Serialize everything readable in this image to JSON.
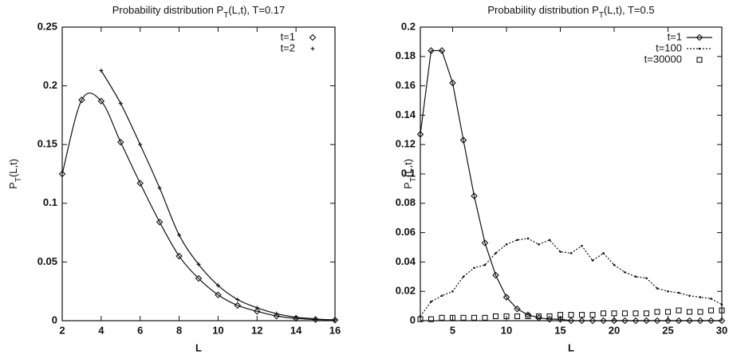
{
  "chart_data": [
    {
      "type": "line",
      "title": [
        "Probability distribution P",
        "T",
        "(L,t), T=0.17"
      ],
      "x_label": "L",
      "y_label": [
        "P",
        "T",
        "(L,t)"
      ],
      "xlim": [
        2,
        16
      ],
      "xticks": [
        2,
        4,
        6,
        8,
        10,
        12,
        14,
        16
      ],
      "ylim": [
        0,
        0.25
      ],
      "yticks": [
        0,
        0.05,
        0.1,
        0.15,
        0.2,
        0.25
      ],
      "legend": "top-right",
      "series": [
        {
          "name": "t=1",
          "color": "#111111",
          "marker": "diamond",
          "line": "smooth",
          "x": [
            2,
            3,
            4,
            5,
            6,
            7,
            8,
            9,
            10,
            11,
            12,
            13,
            14,
            15,
            16
          ],
          "values": [
            0.125,
            0.188,
            0.187,
            0.152,
            0.117,
            0.084,
            0.055,
            0.036,
            0.022,
            0.013,
            0.008,
            0.004,
            0.002,
            0.001,
            0.0005
          ]
        },
        {
          "name": "t=2",
          "color": "#111111",
          "marker": "plus",
          "line": "smooth",
          "x": [
            4,
            5,
            6,
            7,
            8,
            9,
            10,
            11,
            12,
            13,
            14,
            15,
            16
          ],
          "values": [
            0.213,
            0.185,
            0.15,
            0.113,
            0.073,
            0.048,
            0.03,
            0.018,
            0.011,
            0.006,
            0.003,
            0.0015,
            0.0007
          ]
        }
      ]
    },
    {
      "type": "line",
      "title": [
        "Probability distribution P",
        "T",
        "(L,t), T=0.5"
      ],
      "x_label": "L",
      "y_label": [
        "P",
        "T",
        "(L,t)"
      ],
      "xlim": [
        2,
        30
      ],
      "xticks": [
        5,
        10,
        15,
        20,
        25,
        30
      ],
      "ylim": [
        0,
        0.2
      ],
      "yticks": [
        0,
        0.02,
        0.04,
        0.06,
        0.08,
        0.1,
        0.12,
        0.14,
        0.16,
        0.18,
        0.2
      ],
      "legend": "top-right",
      "series": [
        {
          "name": "t=1",
          "color": "#111111",
          "marker": "diamond",
          "line": "solid",
          "x": [
            2,
            3,
            4,
            5,
            6,
            7,
            8,
            9,
            10,
            11,
            12,
            13,
            14,
            15,
            16,
            17,
            18,
            19,
            20,
            21,
            22,
            23,
            24,
            25,
            26,
            27,
            28,
            29,
            30
          ],
          "values": [
            0.127,
            0.184,
            0.184,
            0.162,
            0.123,
            0.085,
            0.053,
            0.031,
            0.016,
            0.008,
            0.004,
            0.002,
            0.001,
            0.001,
            0,
            0,
            0,
            0,
            0,
            0,
            0,
            0,
            0,
            0,
            0,
            0,
            0,
            0,
            0
          ]
        },
        {
          "name": "t=100",
          "color": "#111111",
          "marker": "dot",
          "line": "dotted",
          "x": [
            2,
            3,
            4,
            5,
            6,
            7,
            8,
            9,
            10,
            11,
            12,
            13,
            14,
            15,
            16,
            17,
            18,
            19,
            20,
            21,
            22,
            23,
            24,
            25,
            26,
            27,
            28,
            29,
            30
          ],
          "values": [
            0.003,
            0.013,
            0.017,
            0.02,
            0.03,
            0.036,
            0.038,
            0.046,
            0.052,
            0.055,
            0.056,
            0.052,
            0.055,
            0.047,
            0.046,
            0.051,
            0.041,
            0.046,
            0.038,
            0.033,
            0.03,
            0.029,
            0.022,
            0.02,
            0.019,
            0.017,
            0.016,
            0.015,
            0.011
          ]
        },
        {
          "name": "t=30000",
          "color": "#111111",
          "marker": "square",
          "line": "none",
          "x": [
            2,
            3,
            4,
            5,
            6,
            7,
            8,
            9,
            10,
            11,
            12,
            13,
            14,
            15,
            16,
            17,
            18,
            19,
            20,
            21,
            22,
            23,
            24,
            25,
            26,
            27,
            28,
            29,
            30
          ],
          "values": [
            0.001,
            0.001,
            0.002,
            0.002,
            0.002,
            0.002,
            0.002,
            0.003,
            0.003,
            0.003,
            0.003,
            0.003,
            0.003,
            0.004,
            0.004,
            0.004,
            0.004,
            0.005,
            0.005,
            0.005,
            0.005,
            0.005,
            0.006,
            0.006,
            0.007,
            0.006,
            0.006,
            0.007,
            0.007
          ]
        }
      ]
    }
  ]
}
